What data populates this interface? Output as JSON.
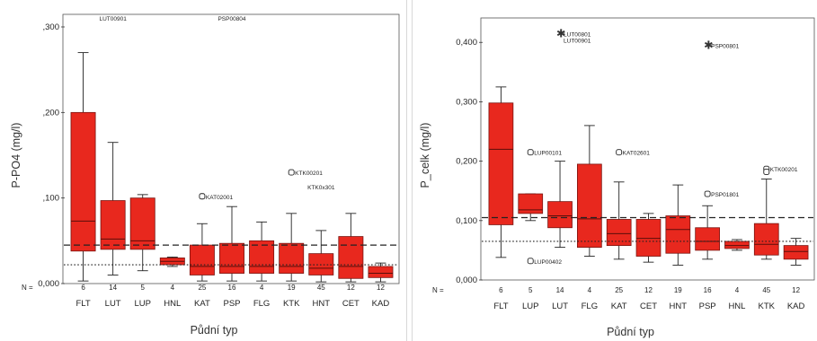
{
  "colors": {
    "box_fill": "#e8281e",
    "box_stroke": "#7a1410",
    "whisker": "#222222",
    "median": "#5a0e0a"
  },
  "chart_data": [
    {
      "type": "boxplot",
      "ylabel": "P-PO4 (mg/l)",
      "xlabel": "Půdní typ",
      "ylim": [
        0,
        0.3
      ],
      "yticks": [
        0,
        0.1,
        0.2,
        0.3
      ],
      "ytick_labels": [
        "0,000",
        ",100",
        ",200",
        ",300"
      ],
      "n_prefix": "N =",
      "categories": [
        "FLT",
        "LUT",
        "LUP",
        "HNL",
        "KAT",
        "PSP",
        "FLG",
        "KTK",
        "HNT",
        "CET",
        "KAD"
      ],
      "n": [
        "6",
        "14",
        "5",
        "4",
        "25",
        "16",
        "4",
        "19",
        "45",
        "12",
        "12"
      ],
      "boxes": [
        {
          "min": 0.003,
          "q1": 0.038,
          "median": 0.073,
          "q3": 0.2,
          "max": 0.27
        },
        {
          "min": 0.01,
          "q1": 0.04,
          "median": 0.052,
          "q3": 0.097,
          "max": 0.165
        },
        {
          "min": 0.015,
          "q1": 0.04,
          "median": 0.05,
          "q3": 0.1,
          "max": 0.104
        },
        {
          "min": 0.02,
          "q1": 0.022,
          "median": 0.026,
          "q3": 0.03,
          "max": 0.031
        },
        {
          "min": 0.003,
          "q1": 0.01,
          "median": 0.02,
          "q3": 0.045,
          "max": 0.07
        },
        {
          "min": 0.003,
          "q1": 0.012,
          "median": 0.02,
          "q3": 0.047,
          "max": 0.09
        },
        {
          "min": 0.003,
          "q1": 0.012,
          "median": 0.02,
          "q3": 0.05,
          "max": 0.072
        },
        {
          "min": 0.003,
          "q1": 0.012,
          "median": 0.02,
          "q3": 0.047,
          "max": 0.082
        },
        {
          "min": 0.002,
          "q1": 0.01,
          "median": 0.018,
          "q3": 0.035,
          "max": 0.062
        },
        {
          "min": 0.002,
          "q1": 0.006,
          "median": 0.02,
          "q3": 0.055,
          "max": 0.082
        },
        {
          "min": 0.002,
          "q1": 0.007,
          "median": 0.012,
          "q3": 0.02,
          "max": 0.024
        }
      ],
      "reference_lines": [
        {
          "value": 0.045,
          "style": "dashed"
        },
        {
          "value": 0.022,
          "style": "dotted"
        }
      ],
      "outliers": [
        {
          "category": "KAT",
          "value": 0.102,
          "marker": "circle",
          "label": "KAT02001"
        },
        {
          "category": "KTK",
          "value": 0.13,
          "marker": "circle",
          "label": "KTK00201"
        }
      ],
      "offscale_labels": [
        {
          "category": "LUT",
          "label": "LUT00901"
        },
        {
          "category": "PSP",
          "label": "PSP00804"
        },
        {
          "category": "HNT",
          "value": 0.112,
          "label": "KTK0x301"
        }
      ]
    },
    {
      "type": "boxplot",
      "ylabel": "P_celk (mg/l)",
      "xlabel": "Půdní typ",
      "ylim": [
        0,
        0.42
      ],
      "yticks": [
        0,
        0.1,
        0.2,
        0.3,
        0.4
      ],
      "ytick_labels": [
        "0,000",
        "0,100",
        "0,200",
        "0,300",
        "0,400"
      ],
      "n_prefix": "N =",
      "categories": [
        "FLT",
        "LUP",
        "LUT",
        "FLG",
        "KAT",
        "CET",
        "HNT",
        "PSP",
        "HNL",
        "KTK",
        "KAD"
      ],
      "n": [
        "6",
        "5",
        "14",
        "4",
        "25",
        "12",
        "19",
        "16",
        "4",
        "45",
        "12"
      ],
      "boxes": [
        {
          "min": 0.038,
          "q1": 0.093,
          "median": 0.22,
          "q3": 0.298,
          "max": 0.325
        },
        {
          "min": 0.1,
          "q1": 0.112,
          "median": 0.118,
          "q3": 0.145,
          "max": 0.145
        },
        {
          "min": 0.055,
          "q1": 0.088,
          "median": 0.108,
          "q3": 0.132,
          "max": 0.2
        },
        {
          "min": 0.04,
          "q1": 0.055,
          "median": 0.103,
          "q3": 0.195,
          "max": 0.26
        },
        {
          "min": 0.035,
          "q1": 0.058,
          "median": 0.078,
          "q3": 0.102,
          "max": 0.165
        },
        {
          "min": 0.03,
          "q1": 0.04,
          "median": 0.07,
          "q3": 0.102,
          "max": 0.112
        },
        {
          "min": 0.025,
          "q1": 0.045,
          "median": 0.085,
          "q3": 0.108,
          "max": 0.16
        },
        {
          "min": 0.035,
          "q1": 0.05,
          "median": 0.065,
          "q3": 0.088,
          "max": 0.125
        },
        {
          "min": 0.05,
          "q1": 0.053,
          "median": 0.058,
          "q3": 0.065,
          "max": 0.068
        },
        {
          "min": 0.035,
          "q1": 0.042,
          "median": 0.06,
          "q3": 0.095,
          "max": 0.17
        },
        {
          "min": 0.025,
          "q1": 0.035,
          "median": 0.048,
          "q3": 0.058,
          "max": 0.07
        }
      ],
      "reference_lines": [
        {
          "value": 0.105,
          "style": "dashed"
        },
        {
          "value": 0.065,
          "style": "dotted"
        }
      ],
      "outliers": [
        {
          "category": "LUP",
          "value": 0.215,
          "marker": "circle",
          "label": "LUP00101"
        },
        {
          "category": "LUP",
          "value": 0.032,
          "marker": "circle",
          "label": "LUP00402"
        },
        {
          "category": "LUT",
          "value": 0.415,
          "marker": "star",
          "label": "LUT00801"
        },
        {
          "category": "LUT",
          "value": 0.404,
          "marker": "none",
          "label": "LUT00901"
        },
        {
          "category": "KAT",
          "value": 0.215,
          "marker": "circle",
          "label": "KAT02601"
        },
        {
          "category": "PSP",
          "value": 0.145,
          "marker": "circle",
          "label": "PSP01801"
        },
        {
          "category": "PSP",
          "value": 0.395,
          "marker": "star",
          "label": "PSP00801"
        },
        {
          "category": "KTK",
          "value": 0.187,
          "marker": "circle",
          "label": "KTK00201"
        },
        {
          "category": "KTK",
          "value": 0.182,
          "marker": "circle",
          "label": ""
        }
      ]
    }
  ]
}
